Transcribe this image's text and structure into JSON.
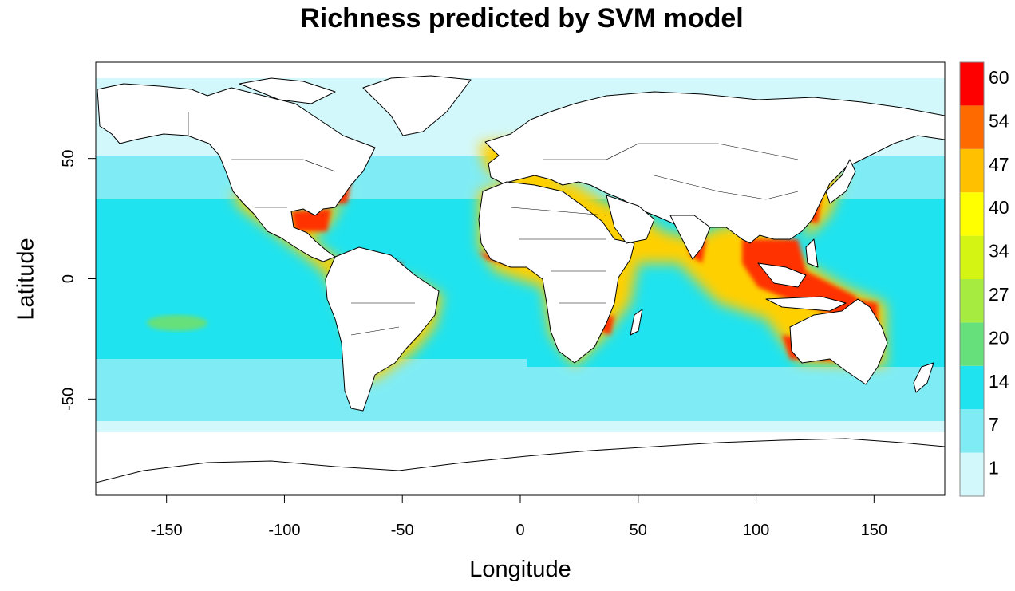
{
  "title": "Richness predicted by SVM model",
  "xlabel": "Longitude",
  "ylabel": "Latitude",
  "x_axis": {
    "range": [
      -180,
      180
    ],
    "ticks": [
      -150,
      -100,
      -50,
      0,
      50,
      100,
      150
    ]
  },
  "y_axis": {
    "range": [
      -90,
      90
    ],
    "ticks": [
      50,
      0,
      -50
    ]
  },
  "legend": {
    "placement": "right",
    "breaks": [
      {
        "label": "1",
        "color": "#d2f8fb"
      },
      {
        "label": "7",
        "color": "#7fecf5"
      },
      {
        "label": "14",
        "color": "#1fe3ef"
      },
      {
        "label": "20",
        "color": "#66e07a"
      },
      {
        "label": "27",
        "color": "#a6eb3f"
      },
      {
        "label": "34",
        "color": "#d4f514"
      },
      {
        "label": "40",
        "color": "#ffff00"
      },
      {
        "label": "47",
        "color": "#ffc000"
      },
      {
        "label": "54",
        "color": "#ff6a00"
      },
      {
        "label": "60",
        "color": "#ff0000"
      }
    ]
  },
  "colors": {
    "land": "#ffffff",
    "polar_ocean": "#ffffff",
    "high_latitude_ocean": "#d2f8fb",
    "mid_latitude_ocean": "#7fecf5",
    "tropical_ocean": "#1fe3ef",
    "coastline": "#000000"
  }
}
